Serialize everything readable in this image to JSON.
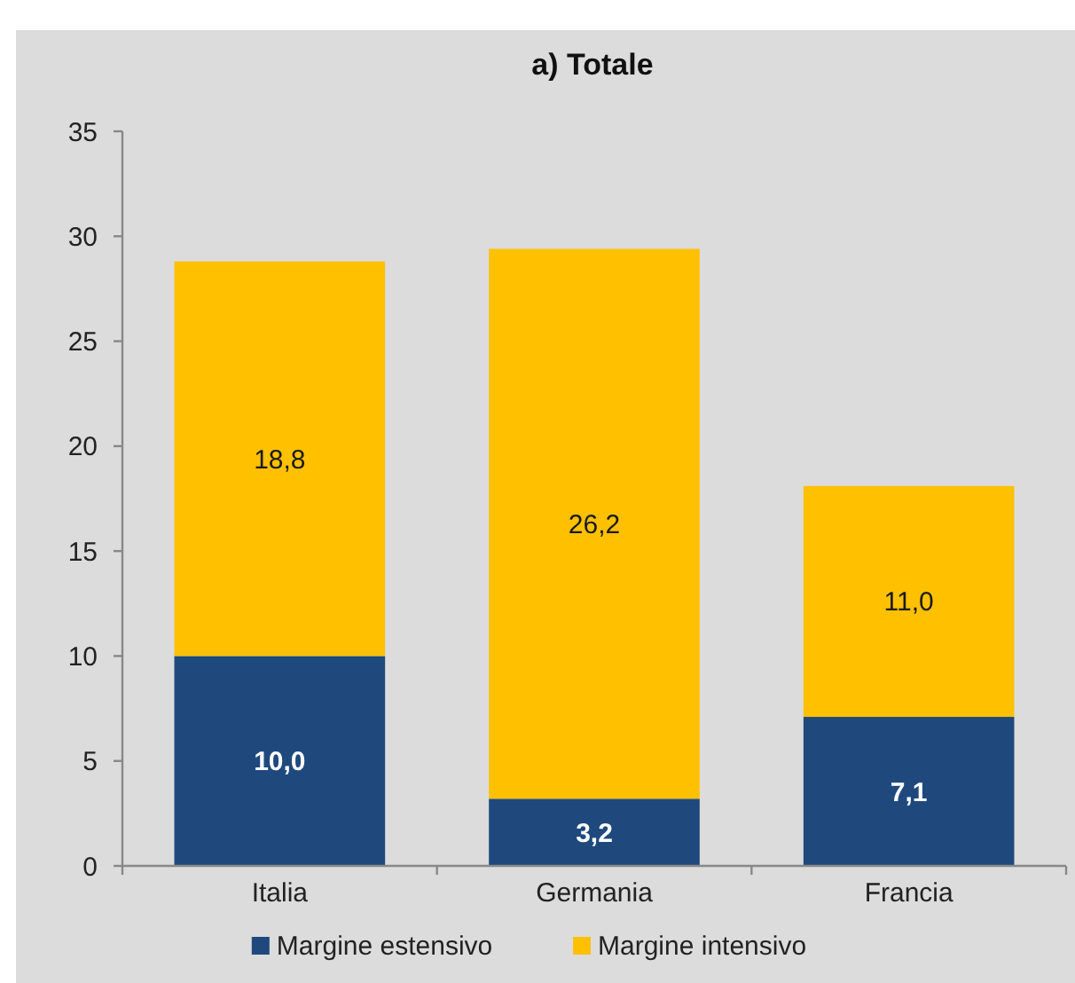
{
  "chart_data": {
    "type": "bar",
    "title": "a) Totale",
    "stacked": true,
    "categories": [
      "Italia",
      "Germania",
      "Francia"
    ],
    "series": [
      {
        "name": "Margine estensivo",
        "color": "#1f497d",
        "values": [
          10.0,
          3.2,
          7.1
        ],
        "value_labels": [
          "10,0",
          "3,2",
          "7,1"
        ]
      },
      {
        "name": "Margine intensivo",
        "color": "#ffc000",
        "values": [
          18.8,
          26.2,
          11.0
        ],
        "value_labels": [
          "18,8",
          "26,2",
          "11,0"
        ]
      }
    ],
    "ylim": [
      0,
      35
    ],
    "yticks": [
      0,
      5,
      10,
      15,
      20,
      25,
      30,
      35
    ],
    "grid": false,
    "legend": "bottom"
  }
}
